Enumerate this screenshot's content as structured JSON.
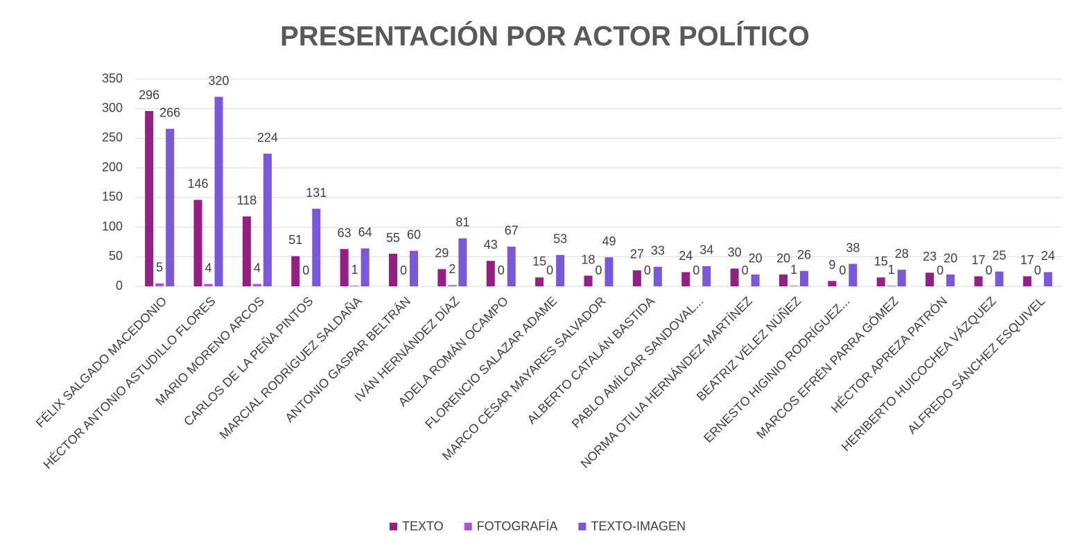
{
  "chart_data": {
    "type": "bar",
    "title": "PRESENTACIÓN POR ACTOR POLÍTICO",
    "categories": [
      "FÉLIX SALGADO MACEDONIO",
      "HÉCTOR ANTONIO ASTUDILLO FLORES",
      "MARIO MORENO ARCOS",
      "CARLOS DE LA PEÑA PINTOS",
      "MARCIAL RODRÍGUEZ SALDAÑA",
      "ANTONIO GASPAR BELTRÁN",
      "IVÁN HERNÁNDEZ DÍAZ",
      "ADELA ROMÁN OCAMPO",
      "FLORENCIO SALAZAR ADAME",
      "MARCO CÉSAR MAYARES SALVADOR",
      "ALBERTO CATALÁN BASTIDA",
      "PABLO AMÍLCAR SANDOVAL...",
      "NORMA OTILIA HERNÁNDEZ MARTÍNEZ",
      "BEATRIZ VÉLEZ NÚÑEZ",
      "ERNESTO HIGINIO RODRÍGUEZ...",
      "MARCOS EFRÉN PARRA GÓMEZ",
      "HÉCTOR APREZA PATRÓN",
      "HERIBERTO HUICOCHEA VÁZQUEZ",
      "ALFREDO SÁNCHEZ ESQUIVEL"
    ],
    "series": [
      {
        "name": "TEXTO",
        "color": "#961f86",
        "values": [
          296,
          146,
          118,
          51,
          63,
          55,
          29,
          43,
          15,
          18,
          27,
          24,
          30,
          20,
          9,
          15,
          23,
          17,
          17
        ]
      },
      {
        "name": "FOTOGRAFÍA",
        "color": "#a655dc",
        "values": [
          5,
          4,
          4,
          0,
          1,
          0,
          2,
          0,
          0,
          0,
          0,
          0,
          0,
          1,
          0,
          1,
          0,
          0,
          0
        ]
      },
      {
        "name": "TEXTO-IMAGEN",
        "color": "#7a58dc",
        "values": [
          266,
          320,
          224,
          131,
          64,
          60,
          81,
          67,
          53,
          49,
          33,
          34,
          20,
          26,
          38,
          28,
          20,
          25,
          24
        ]
      }
    ],
    "ylim": [
      0,
      350
    ],
    "yticks": [
      0,
      50,
      100,
      150,
      200,
      250,
      300,
      350
    ],
    "grid": true,
    "legend": "bottom"
  }
}
